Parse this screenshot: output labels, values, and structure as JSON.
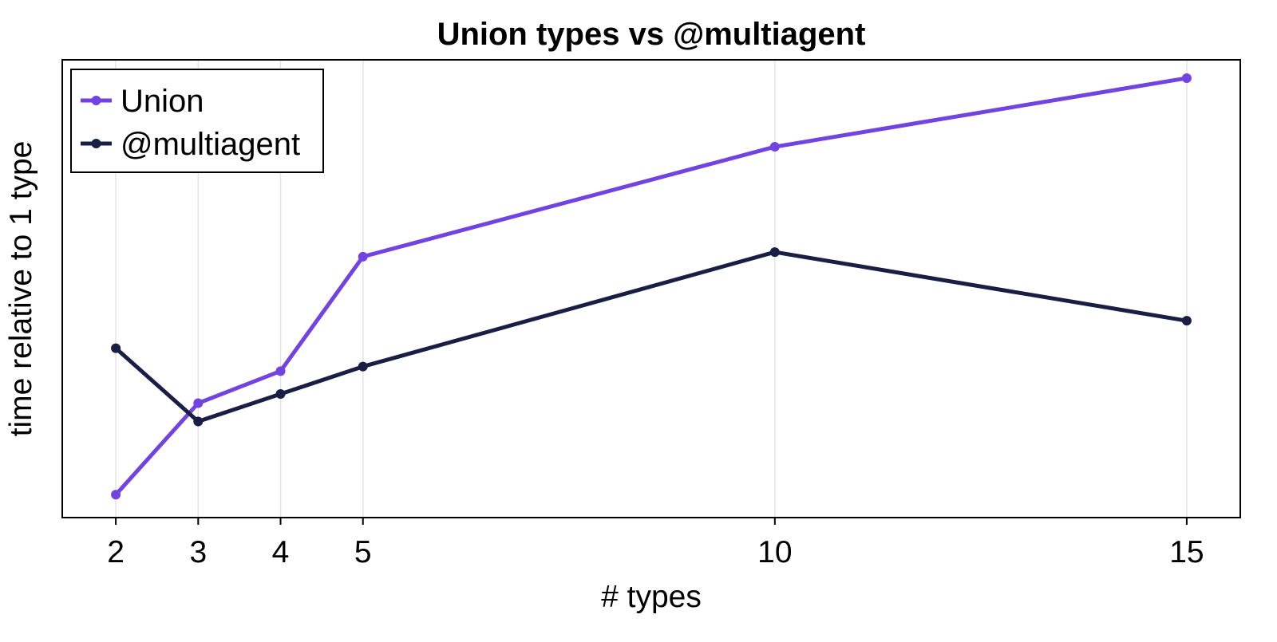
{
  "chart_data": {
    "type": "line",
    "title": "Union types vs @multiagent",
    "xlabel": "# types",
    "ylabel": "time relative to 1 type",
    "x": [
      2,
      3,
      4,
      5,
      10,
      15
    ],
    "xticks": [
      "2",
      "3",
      "4",
      "5",
      "10",
      "15"
    ],
    "xlim": [
      1.35,
      15.65
    ],
    "ylim": [
      0,
      1
    ],
    "yticks_shown": false,
    "grid": "vertical",
    "legend_position": "top-left",
    "series": [
      {
        "name": "Union",
        "color": "#7143e0",
        "values": [
          0.05,
          0.25,
          0.32,
          0.57,
          0.81,
          0.96
        ]
      },
      {
        "name": "@multiagent",
        "color": "#191e44",
        "values": [
          0.37,
          0.21,
          0.27,
          0.33,
          0.58,
          0.43
        ]
      }
    ]
  }
}
